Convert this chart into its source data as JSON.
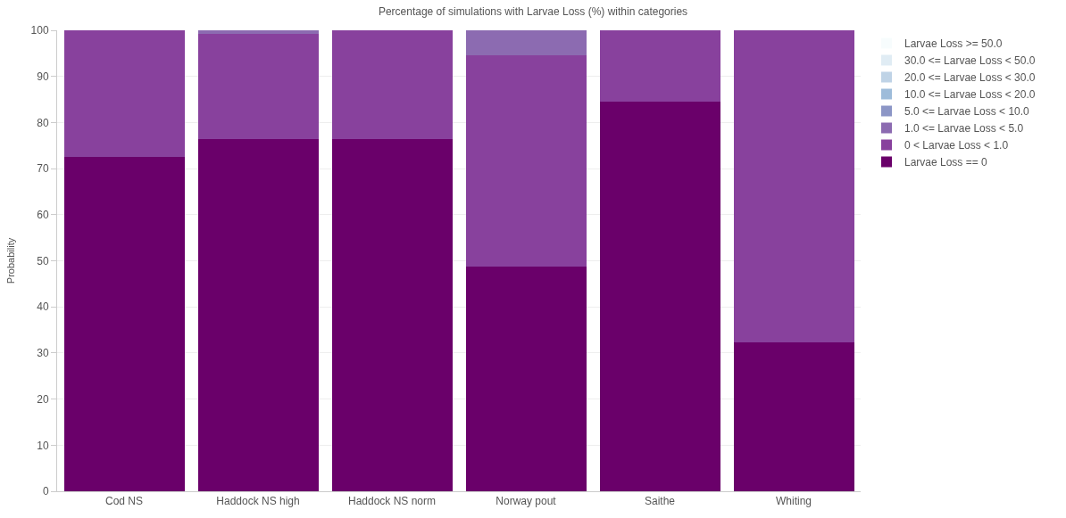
{
  "chart_data": {
    "type": "bar",
    "title": "Percentage of simulations with Larvae Loss (%) within categories",
    "ylabel": "Probability",
    "stacked": true,
    "categories": [
      "Cod NS",
      "Haddock NS high",
      "Haddock NS norm",
      "Norway pout",
      "Saithe",
      "Whiting"
    ],
    "series": [
      {
        "name": "Larvae Loss == 0",
        "color": "#6a006a",
        "values": [
          72.5,
          76.5,
          76.5,
          48.8,
          84.5,
          32.3
        ]
      },
      {
        "name": "0 < Larvae Loss < 1.0",
        "color": "#88419d",
        "values": [
          27.5,
          22.7,
          23.5,
          45.7,
          15.5,
          67.7
        ]
      },
      {
        "name": "1.0 <= Larvae Loss < 5.0",
        "color": "#8c6bb1",
        "values": [
          0,
          0.8,
          0,
          5.5,
          0,
          0
        ]
      },
      {
        "name": "5.0 <= Larvae Loss < 10.0",
        "color": "#8c96c6",
        "values": [
          0,
          0,
          0,
          0,
          0,
          0
        ]
      },
      {
        "name": "10.0 <= Larvae Loss < 20.0",
        "color": "#9ebcda",
        "values": [
          0,
          0,
          0,
          0,
          0,
          0
        ]
      },
      {
        "name": "20.0 <= Larvae Loss < 30.0",
        "color": "#bfd3e6",
        "values": [
          0,
          0,
          0,
          0,
          0,
          0
        ]
      },
      {
        "name": "30.0 <= Larvae Loss < 50.0",
        "color": "#e0ecf4",
        "values": [
          0,
          0,
          0,
          0,
          0,
          0
        ]
      },
      {
        "name": "Larvae Loss >= 50.0",
        "color": "#f7fcfd",
        "values": [
          0,
          0,
          0,
          0,
          0,
          0
        ]
      }
    ],
    "ylim": [
      0,
      100
    ],
    "yticks": [
      0,
      10,
      20,
      30,
      40,
      50,
      60,
      70,
      80,
      90,
      100
    ],
    "grid": "y",
    "legend": "top right"
  }
}
